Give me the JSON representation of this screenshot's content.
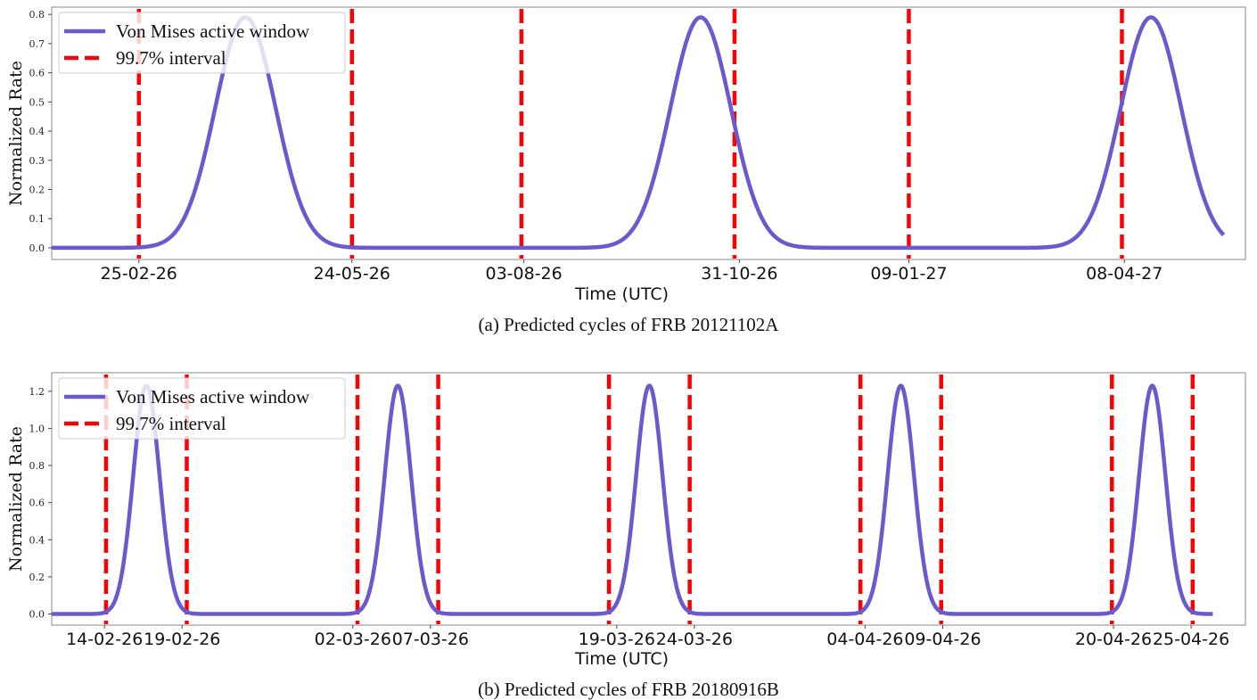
{
  "chart_data": [
    {
      "type": "line",
      "caption": "(a) Predicted cycles of FRB 20121102A",
      "xlabel": "Time (UTC)",
      "ylabel": "Normalized Rate",
      "x_ticks": [
        "25-02-26",
        "24-05-26",
        "03-08-26",
        "31-10-26",
        "09-01-27",
        "08-04-27"
      ],
      "x_tick_days": [
        0,
        88,
        159,
        248,
        318,
        407
      ],
      "xlim_days": [
        -36,
        457
      ],
      "ylim": [
        -0.04,
        0.825
      ],
      "y_ticks": [
        0.0,
        0.1,
        0.2,
        0.3,
        0.4,
        0.5,
        0.6,
        0.7,
        0.8
      ],
      "y_tick_labels": [
        "0.0",
        "0.1",
        "0.2",
        "0.3",
        "0.4",
        "0.5",
        "0.6",
        "0.7",
        "0.8"
      ],
      "legend": {
        "position": "upper left",
        "entries": [
          "Von Mises active window",
          "99.7% interval"
        ]
      },
      "grid": false,
      "series": [
        {
          "name": "Von Mises active window",
          "color": "#6a5acd",
          "peak_days": [
            44,
            232,
            418
          ],
          "peak_value": 0.79,
          "sigma_days": 12.5,
          "baseline": 0.0,
          "x_start_days": -36,
          "x_end_days": 448
        }
      ],
      "intervals": {
        "name": "99.7% interval",
        "color": "#ff0000",
        "days": [
          0,
          88,
          158,
          246,
          318,
          406
        ]
      }
    },
    {
      "type": "line",
      "caption": "(b) Predicted cycles of FRB 20180916B",
      "xlabel": "Time (UTC)",
      "ylabel": "Normalized Rate",
      "x_ticks": [
        "14-02-26",
        "19-02-26",
        "02-03-26",
        "07-03-26",
        "19-03-26",
        "24-03-26",
        "04-04-26",
        "09-04-26",
        "20-04-26",
        "25-04-26"
      ],
      "x_tick_days": [
        0,
        5,
        16,
        21,
        33,
        38,
        49,
        54,
        65,
        70
      ],
      "xlim_days": [
        -3.4,
        73.5
      ],
      "ylim": [
        -0.06,
        1.3
      ],
      "y_ticks": [
        0.0,
        0.2,
        0.4,
        0.6,
        0.8,
        1.0,
        1.2
      ],
      "y_tick_labels": [
        "0.0",
        "0.2",
        "0.4",
        "0.6",
        "0.8",
        "1.0",
        "1.2"
      ],
      "legend": {
        "position": "upper left",
        "entries": [
          "Von Mises active window",
          "99.7% interval"
        ]
      },
      "grid": false,
      "series": [
        {
          "name": "Von Mises active window",
          "color": "#6a5acd",
          "peak_days": [
            2.7,
            18.9,
            35.1,
            51.3,
            67.5
          ],
          "peak_value": 1.23,
          "sigma_days": 0.85,
          "baseline": 0.0,
          "x_start_days": -3.4,
          "x_end_days": 71.4
        }
      ],
      "intervals": {
        "name": "99.7% interval",
        "color": "#ff0000",
        "days": [
          0.1,
          5.3,
          16.3,
          21.5,
          32.5,
          37.7,
          48.7,
          53.9,
          64.9,
          70.1
        ]
      }
    }
  ]
}
